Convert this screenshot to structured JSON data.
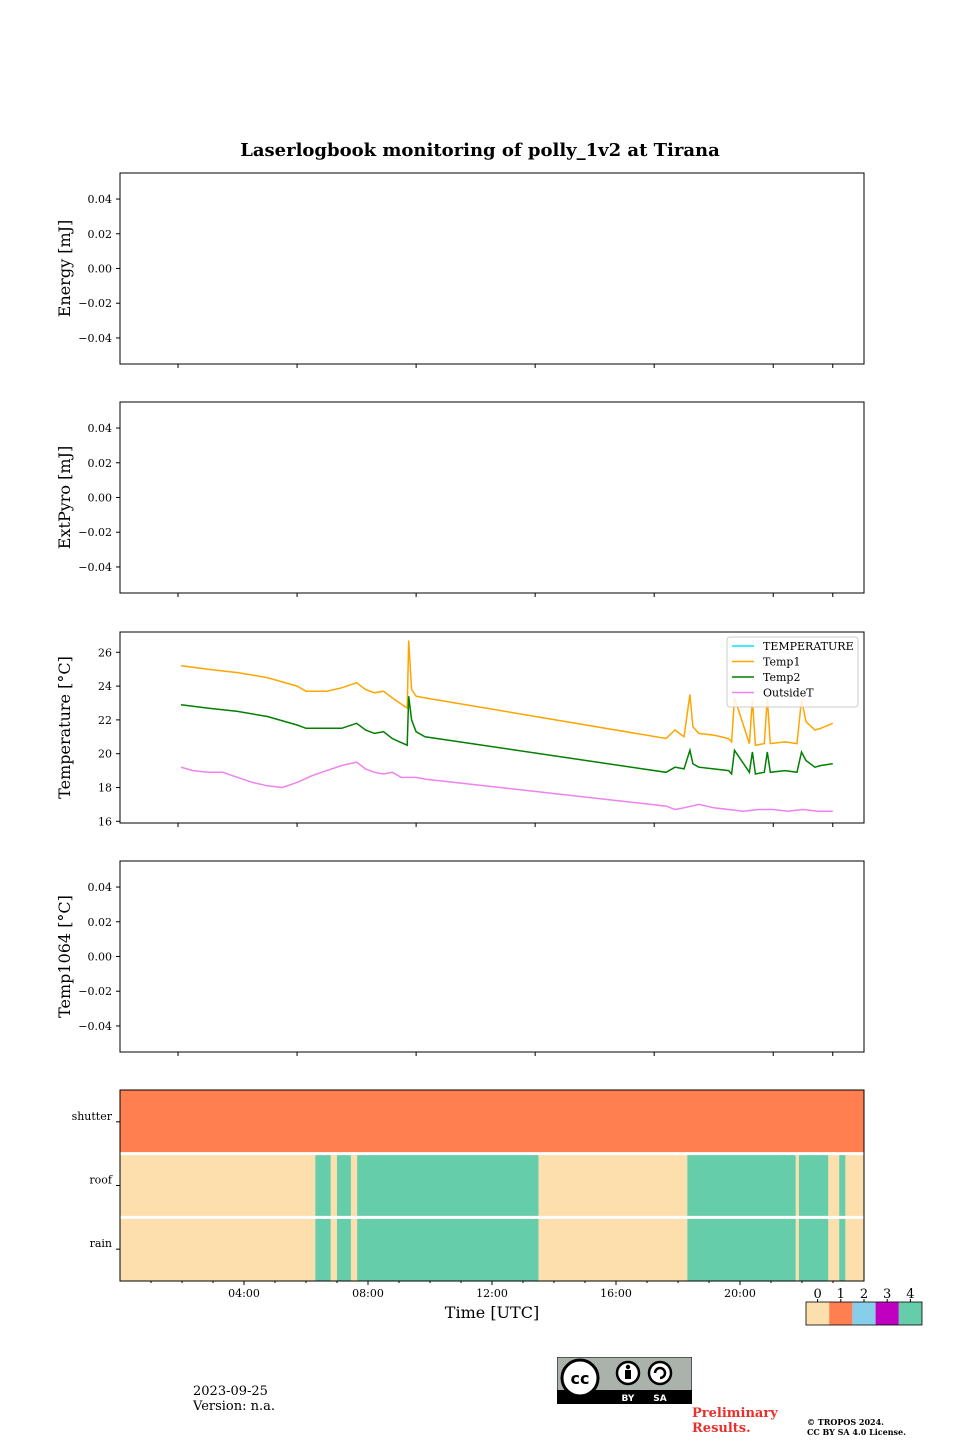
{
  "title": "Laserlogbook monitoring of polly_1v2 at Tirana",
  "footer": {
    "date": "2023-09-25",
    "version": "Version: n.a.",
    "preliminary_line1": "Preliminary",
    "preliminary_line2": "Results.",
    "copyright_line1": "© TROPOS 2024.",
    "copyright_line2": "CC BY SA 4.0 License.",
    "cc_by": "BY",
    "cc_sa": "SA"
  },
  "chart_data": [
    {
      "type": "line",
      "ylabel": "Energy [mJ]",
      "ylim": [
        -0.055,
        0.055
      ],
      "yticks": [
        0.04,
        0.02,
        0.0,
        -0.02,
        -0.04
      ],
      "ytick_labels": [
        "0.04",
        "0.02",
        "0.00",
        "−0.02",
        "−0.04"
      ],
      "series": []
    },
    {
      "type": "line",
      "ylabel": "ExtPyro [mJ]",
      "ylim": [
        -0.055,
        0.055
      ],
      "yticks": [
        0.04,
        0.02,
        0.0,
        -0.02,
        -0.04
      ],
      "ytick_labels": [
        "0.04",
        "0.02",
        "0.00",
        "−0.02",
        "−0.04"
      ],
      "series": []
    },
    {
      "type": "line",
      "ylabel": "Temperature [°C]",
      "ylim": [
        15.9,
        27.2
      ],
      "yticks": [
        16,
        18,
        20,
        22,
        24,
        26
      ],
      "ytick_labels": [
        "16",
        "18",
        "20",
        "22",
        "24",
        "26"
      ],
      "legend_position": "top-right",
      "series": [
        {
          "name": "TEMPERATURE",
          "color": "#00e5ff",
          "x": [],
          "y": []
        },
        {
          "name": "Temp1",
          "color": "#ffa500",
          "x": [
            1.1,
            2.0,
            3.0,
            4.0,
            5.0,
            5.3,
            6.0,
            6.5,
            7.0,
            7.3,
            7.6,
            7.9,
            8.2,
            8.45,
            8.7,
            8.75,
            8.85,
            9.0,
            9.3,
            17.4,
            17.7,
            18.0,
            18.2,
            18.3,
            18.5,
            19.0,
            19.5,
            19.6,
            19.7,
            20.2,
            20.3,
            20.4,
            20.7,
            20.8,
            20.9,
            21.4,
            21.8,
            21.95,
            22.1,
            22.4,
            22.6,
            23.0
          ],
          "y": [
            25.2,
            25.0,
            24.8,
            24.5,
            24.0,
            23.7,
            23.7,
            23.9,
            24.2,
            23.8,
            23.6,
            23.7,
            23.3,
            23.0,
            22.7,
            26.7,
            23.8,
            23.4,
            23.3,
            20.9,
            21.4,
            21.0,
            23.5,
            21.6,
            21.2,
            21.1,
            20.9,
            20.7,
            23.3,
            20.6,
            23.2,
            20.5,
            20.6,
            23.3,
            20.6,
            20.7,
            20.6,
            23.2,
            21.9,
            21.4,
            21.5,
            21.8
          ]
        },
        {
          "name": "Temp2",
          "color": "#008000",
          "x": [
            1.1,
            2.0,
            3.0,
            4.0,
            5.0,
            5.3,
            6.0,
            6.5,
            7.0,
            7.3,
            7.6,
            7.9,
            8.2,
            8.45,
            8.7,
            8.75,
            8.85,
            9.0,
            9.3,
            17.4,
            17.7,
            18.0,
            18.2,
            18.3,
            18.5,
            19.0,
            19.5,
            19.6,
            19.7,
            20.2,
            20.3,
            20.4,
            20.7,
            20.8,
            20.9,
            21.4,
            21.8,
            21.95,
            22.1,
            22.4,
            22.6,
            23.0
          ],
          "y": [
            22.9,
            22.7,
            22.5,
            22.2,
            21.7,
            21.5,
            21.5,
            21.5,
            21.8,
            21.4,
            21.2,
            21.3,
            20.9,
            20.7,
            20.5,
            23.4,
            22.0,
            21.3,
            21.0,
            18.9,
            19.2,
            19.1,
            20.2,
            19.4,
            19.2,
            19.1,
            19.0,
            18.8,
            20.2,
            18.9,
            20.1,
            18.8,
            18.9,
            20.1,
            18.9,
            19.0,
            18.9,
            20.1,
            19.6,
            19.2,
            19.3,
            19.4
          ]
        },
        {
          "name": "OutsideT",
          "color": "#ee82ee",
          "x": [
            1.1,
            1.5,
            2.0,
            2.5,
            3.0,
            3.5,
            4.0,
            4.5,
            5.0,
            5.5,
            6.0,
            6.5,
            7.0,
            7.3,
            7.6,
            7.9,
            8.2,
            8.5,
            8.8,
            9.0,
            9.3,
            17.4,
            17.7,
            18.0,
            18.5,
            19.0,
            19.5,
            20.0,
            20.5,
            21.0,
            21.5,
            22.0,
            22.5,
            23.0
          ],
          "y": [
            19.2,
            19.0,
            18.9,
            18.9,
            18.6,
            18.3,
            18.1,
            18.0,
            18.3,
            18.7,
            19.0,
            19.3,
            19.5,
            19.1,
            18.9,
            18.8,
            18.9,
            18.6,
            18.6,
            18.6,
            18.5,
            16.9,
            16.7,
            16.8,
            17.0,
            16.8,
            16.7,
            16.6,
            16.7,
            16.7,
            16.6,
            16.7,
            16.6,
            16.6
          ]
        }
      ]
    },
    {
      "type": "line",
      "ylabel": "Temp1064 [°C]",
      "ylim": [
        -0.055,
        0.055
      ],
      "yticks": [
        0.04,
        0.02,
        0.0,
        -0.02,
        -0.04
      ],
      "ytick_labels": [
        "0.04",
        "0.02",
        "0.00",
        "−0.02",
        "−0.04"
      ],
      "series": []
    },
    {
      "type": "heatmap",
      "xlabel": "Time [UTC]",
      "xlim": [
        0,
        24
      ],
      "xticks": [
        4,
        8,
        12,
        16,
        20
      ],
      "xtick_labels": [
        "04:00",
        "08:00",
        "12:00",
        "16:00",
        "20:00"
      ],
      "rows": [
        "shutter",
        "roof",
        "rain"
      ],
      "colorbar": {
        "labels": [
          "0",
          "1",
          "2",
          "3",
          "4"
        ],
        "colors": [
          "#fcdfad",
          "#ff7f50",
          "#87ceeb",
          "#c000c0",
          "#66cdaa"
        ]
      },
      "segments": {
        "shutter": [
          {
            "start": 0.0,
            "end": 24.0,
            "state": 1
          }
        ],
        "roof": [
          {
            "start": 0.0,
            "end": 6.3,
            "state": 0
          },
          {
            "start": 6.3,
            "end": 6.8,
            "state": 4
          },
          {
            "start": 6.8,
            "end": 7.0,
            "state": 0
          },
          {
            "start": 7.0,
            "end": 7.45,
            "state": 4
          },
          {
            "start": 7.45,
            "end": 7.65,
            "state": 0
          },
          {
            "start": 7.65,
            "end": 13.5,
            "state": 4
          },
          {
            "start": 13.5,
            "end": 18.3,
            "state": 0
          },
          {
            "start": 18.3,
            "end": 21.8,
            "state": 4
          },
          {
            "start": 21.8,
            "end": 21.9,
            "state": 0
          },
          {
            "start": 21.9,
            "end": 22.85,
            "state": 4
          },
          {
            "start": 22.85,
            "end": 23.2,
            "state": 0
          },
          {
            "start": 23.2,
            "end": 23.4,
            "state": 4
          },
          {
            "start": 23.4,
            "end": 24.0,
            "state": 0
          }
        ],
        "rain": [
          {
            "start": 0.0,
            "end": 6.3,
            "state": 0
          },
          {
            "start": 6.3,
            "end": 6.8,
            "state": 4
          },
          {
            "start": 6.8,
            "end": 7.0,
            "state": 0
          },
          {
            "start": 7.0,
            "end": 7.45,
            "state": 4
          },
          {
            "start": 7.45,
            "end": 7.65,
            "state": 0
          },
          {
            "start": 7.65,
            "end": 13.5,
            "state": 4
          },
          {
            "start": 13.5,
            "end": 18.3,
            "state": 0
          },
          {
            "start": 18.3,
            "end": 21.8,
            "state": 4
          },
          {
            "start": 21.8,
            "end": 21.9,
            "state": 0
          },
          {
            "start": 21.9,
            "end": 22.85,
            "state": 4
          },
          {
            "start": 22.85,
            "end": 23.2,
            "state": 0
          },
          {
            "start": 23.2,
            "end": 23.4,
            "state": 4
          },
          {
            "start": 23.4,
            "end": 24.0,
            "state": 0
          }
        ]
      }
    }
  ]
}
